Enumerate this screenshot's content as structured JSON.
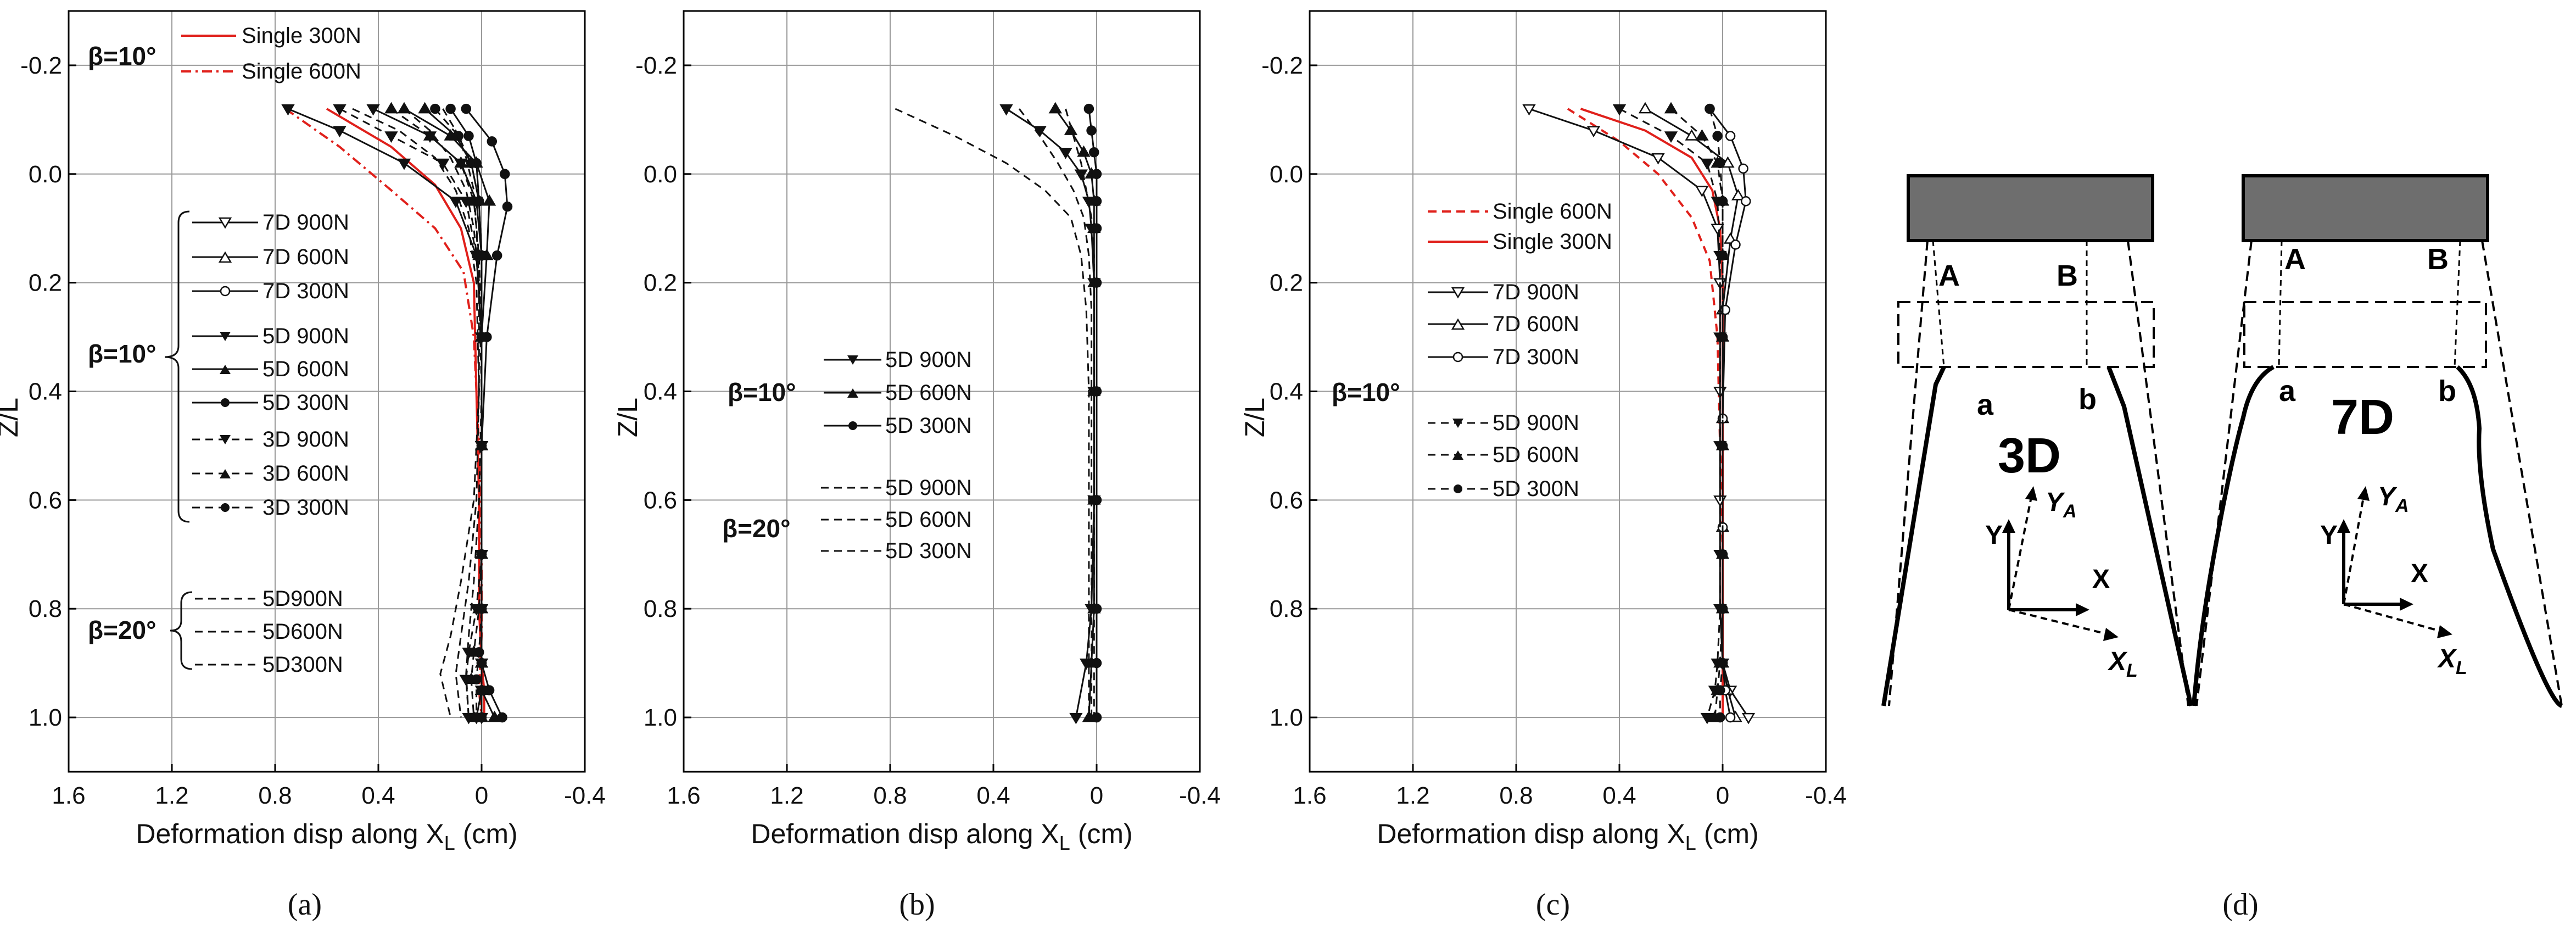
{
  "chart_data": [
    {
      "type": "line",
      "panel": "(a)",
      "xlabel": "Deformation disp along X",
      "xlabel_sub": "L",
      "xlabel_unit": " (cm)",
      "ylabel": "Z/L",
      "xlim": [
        1.6,
        -0.4
      ],
      "ylim": [
        -0.3,
        1.1
      ],
      "x_ticks": [
        "1.6",
        "1.2",
        "0.8",
        "0.4",
        "0",
        "-0.4"
      ],
      "y_ticks": [
        "-0.2",
        "0.0",
        "0.2",
        "0.4",
        "0.6",
        "0.8",
        "1.0"
      ],
      "annotations": [
        "β=10°",
        "β=10°",
        "β=20°"
      ],
      "series": [
        {
          "name": "Single 300N",
          "style": "red-solid",
          "x": [
            0.6,
            0.35,
            0.18,
            0.08,
            0.03,
            0.02,
            0.01,
            0.01,
            0.0,
            -0.01,
            -0.01
          ],
          "y": [
            -0.12,
            -0.05,
            0.02,
            0.1,
            0.2,
            0.4,
            0.6,
            0.8,
            0.9,
            0.95,
            1.0
          ]
        },
        {
          "name": "Single 600N",
          "style": "red-dashdot",
          "x": [
            0.76,
            0.55,
            0.35,
            0.18,
            0.07,
            0.03,
            0.01,
            0.0,
            0.0,
            0.01,
            0.0
          ],
          "y": [
            -0.12,
            -0.05,
            0.03,
            0.1,
            0.18,
            0.3,
            0.5,
            0.7,
            0.85,
            0.95,
            1.0
          ]
        },
        {
          "name": "7D 900N",
          "style": "black-solid-down",
          "x": [
            0.75,
            0.55,
            0.3,
            0.1,
            0.02,
            0.0,
            0.0,
            0.0,
            0.0,
            0.0,
            0.0,
            0.02
          ],
          "y": [
            -0.12,
            -0.08,
            -0.02,
            0.05,
            0.15,
            0.3,
            0.5,
            0.7,
            0.8,
            0.9,
            0.95,
            1.0
          ]
        },
        {
          "name": "7D 600N",
          "style": "black-solid-up",
          "x": [
            0.3,
            0.12,
            0.02,
            -0.03,
            -0.02,
            0.0,
            0.0,
            0.0,
            0.0,
            0.0,
            0.0,
            -0.05
          ],
          "y": [
            -0.12,
            -0.07,
            -0.02,
            0.05,
            0.15,
            0.3,
            0.5,
            0.7,
            0.8,
            0.9,
            0.95,
            1.0
          ]
        },
        {
          "name": "7D 300N",
          "style": "black-solid-circle",
          "x": [
            0.06,
            -0.04,
            -0.09,
            -0.1,
            -0.06,
            -0.02,
            0.0,
            0.0,
            0.0,
            0.0,
            -0.03,
            -0.08
          ],
          "y": [
            -0.12,
            -0.06,
            0.0,
            0.06,
            0.15,
            0.3,
            0.5,
            0.7,
            0.8,
            0.9,
            0.95,
            1.0
          ]
        },
        {
          "name": "5D 900N",
          "style": "black-solid-down",
          "x": [
            0.42,
            0.2,
            0.08,
            0.02,
            0.0,
            0.0,
            0.0,
            0.0,
            0.0,
            0.0,
            0.0,
            0.0
          ],
          "y": [
            -0.12,
            -0.07,
            -0.02,
            0.05,
            0.15,
            0.3,
            0.5,
            0.7,
            0.8,
            0.9,
            0.95,
            1.0
          ]
        },
        {
          "name": "5D 600N",
          "style": "black-solid-up",
          "x": [
            0.22,
            0.1,
            0.04,
            0.01,
            0.0,
            0.0,
            0.0,
            0.0,
            0.0,
            0.0,
            0.0,
            0.0
          ],
          "y": [
            -0.12,
            -0.07,
            -0.02,
            0.05,
            0.15,
            0.3,
            0.5,
            0.7,
            0.8,
            0.9,
            0.95,
            1.0
          ]
        },
        {
          "name": "5D 300N",
          "style": "black-solid-circle",
          "x": [
            0.12,
            0.05,
            0.02,
            0.01,
            0.0,
            0.0,
            0.0,
            0.0,
            0.0,
            0.0,
            0.0,
            0.0
          ],
          "y": [
            -0.12,
            -0.07,
            -0.02,
            0.05,
            0.15,
            0.3,
            0.5,
            0.7,
            0.8,
            0.9,
            0.95,
            1.0
          ]
        },
        {
          "name": "3D 900N",
          "style": "black-dashed-down",
          "x": [
            0.55,
            0.35,
            0.15,
            0.06,
            0.02,
            0.0,
            0.0,
            0.0,
            0.02,
            0.05,
            0.06,
            0.05
          ],
          "y": [
            -0.12,
            -0.07,
            -0.02,
            0.05,
            0.15,
            0.3,
            0.5,
            0.7,
            0.8,
            0.88,
            0.93,
            1.0
          ]
        },
        {
          "name": "3D 600N",
          "style": "black-dashed-up",
          "x": [
            0.35,
            0.2,
            0.08,
            0.03,
            0.01,
            0.0,
            0.0,
            0.0,
            0.01,
            0.03,
            0.04,
            0.03
          ],
          "y": [
            -0.12,
            -0.07,
            -0.02,
            0.05,
            0.15,
            0.3,
            0.5,
            0.7,
            0.8,
            0.88,
            0.93,
            1.0
          ]
        },
        {
          "name": "3D 300N",
          "style": "black-dashed-circle",
          "x": [
            0.18,
            0.09,
            0.04,
            0.01,
            0.0,
            0.0,
            0.0,
            0.0,
            0.0,
            0.01,
            0.02,
            0.02
          ],
          "y": [
            -0.12,
            -0.07,
            -0.02,
            0.05,
            0.15,
            0.3,
            0.5,
            0.7,
            0.8,
            0.88,
            0.93,
            1.0
          ]
        },
        {
          "name": "5D900N",
          "style": "black-dashed",
          "x": [
            0.5,
            0.32,
            0.18,
            0.1,
            0.05,
            0.02,
            0.01,
            0.03,
            0.08,
            0.12,
            0.16,
            0.12
          ],
          "y": [
            -0.12,
            -0.08,
            -0.03,
            0.03,
            0.1,
            0.2,
            0.4,
            0.6,
            0.75,
            0.85,
            0.92,
            1.0
          ]
        },
        {
          "name": "5D600N",
          "style": "black-dashed",
          "x": [
            0.3,
            0.2,
            0.12,
            0.06,
            0.03,
            0.01,
            0.01,
            0.02,
            0.05,
            0.08,
            0.1,
            0.08
          ],
          "y": [
            -0.12,
            -0.08,
            -0.03,
            0.03,
            0.1,
            0.2,
            0.4,
            0.6,
            0.75,
            0.85,
            0.92,
            1.0
          ]
        },
        {
          "name": "5D300N",
          "style": "black-dashed",
          "x": [
            0.15,
            0.1,
            0.06,
            0.03,
            0.02,
            0.01,
            0.0,
            0.01,
            0.03,
            0.05,
            0.06,
            0.05
          ],
          "y": [
            -0.12,
            -0.08,
            -0.03,
            0.03,
            0.1,
            0.2,
            0.4,
            0.6,
            0.75,
            0.85,
            0.92,
            1.0
          ]
        }
      ]
    },
    {
      "type": "line",
      "panel": "(b)",
      "xlabel": "Deformation disp along X",
      "xlabel_sub": "L",
      "xlabel_unit": " (cm)",
      "ylabel": "Z/L",
      "xlim": [
        1.6,
        -0.4
      ],
      "ylim": [
        -0.3,
        1.1
      ],
      "x_ticks": [
        "1.6",
        "1.2",
        "0.8",
        "0.4",
        "0",
        "-0.4"
      ],
      "y_ticks": [
        "-0.2",
        "0.0",
        "0.2",
        "0.4",
        "0.6",
        "0.8",
        "1.0"
      ],
      "annotations": [
        "β=10°",
        "β=20°"
      ],
      "series": [
        {
          "name": "5D 900N",
          "style": "black-solid-down",
          "x": [
            0.35,
            0.22,
            0.12,
            0.06,
            0.03,
            0.02,
            0.01,
            0.01,
            0.01,
            0.02,
            0.04,
            0.08
          ],
          "y": [
            -0.12,
            -0.08,
            -0.04,
            0.0,
            0.05,
            0.1,
            0.2,
            0.4,
            0.6,
            0.8,
            0.9,
            1.0
          ]
        },
        {
          "name": "5D 600N",
          "style": "black-solid-up",
          "x": [
            0.16,
            0.1,
            0.05,
            0.02,
            0.01,
            0.01,
            0.01,
            0.01,
            0.01,
            0.01,
            0.02,
            0.03
          ],
          "y": [
            -0.12,
            -0.08,
            -0.04,
            0.0,
            0.05,
            0.1,
            0.2,
            0.4,
            0.6,
            0.8,
            0.9,
            1.0
          ]
        },
        {
          "name": "5D 300N",
          "style": "black-solid-circle",
          "x": [
            0.03,
            0.02,
            0.01,
            0.0,
            0.0,
            0.0,
            0.0,
            0.0,
            0.0,
            0.0,
            0.0,
            0.0
          ],
          "y": [
            -0.12,
            -0.08,
            -0.04,
            0.0,
            0.05,
            0.1,
            0.2,
            0.4,
            0.6,
            0.8,
            0.9,
            1.0
          ]
        },
        {
          "name": "5D 900N",
          "style": "black-dashed",
          "x": [
            0.78,
            0.55,
            0.35,
            0.2,
            0.1,
            0.06,
            0.04,
            0.03,
            0.03,
            0.03,
            0.03,
            0.03
          ],
          "y": [
            -0.12,
            -0.07,
            -0.02,
            0.03,
            0.08,
            0.15,
            0.25,
            0.4,
            0.6,
            0.8,
            0.9,
            1.0
          ]
        },
        {
          "name": "5D 600N",
          "style": "black-dashed",
          "x": [
            0.3,
            0.22,
            0.15,
            0.09,
            0.05,
            0.03,
            0.02,
            0.02,
            0.02,
            0.02,
            0.02,
            0.02
          ],
          "y": [
            -0.12,
            -0.07,
            -0.02,
            0.03,
            0.08,
            0.15,
            0.25,
            0.4,
            0.6,
            0.8,
            0.9,
            1.0
          ]
        },
        {
          "name": "5D 300N",
          "style": "black-dashed",
          "x": [
            0.12,
            0.09,
            0.06,
            0.04,
            0.02,
            0.01,
            0.01,
            0.01,
            0.01,
            0.01,
            0.01,
            0.01
          ],
          "y": [
            -0.12,
            -0.07,
            -0.02,
            0.03,
            0.08,
            0.15,
            0.25,
            0.4,
            0.6,
            0.8,
            0.9,
            1.0
          ]
        }
      ]
    },
    {
      "type": "line",
      "panel": "(c)",
      "xlabel": "Deformation disp along X",
      "xlabel_sub": "L",
      "xlabel_unit": " (cm)",
      "ylabel": "Z/L",
      "xlim": [
        1.6,
        -0.4
      ],
      "ylim": [
        -0.3,
        1.1
      ],
      "x_ticks": [
        "1.6",
        "1.2",
        "0.8",
        "0.4",
        "0",
        "-0.4"
      ],
      "y_ticks": [
        "-0.2",
        "0.0",
        "0.2",
        "0.4",
        "0.6",
        "0.8",
        "1.0"
      ],
      "annotations": [
        "β=10°"
      ],
      "series": [
        {
          "name": "Single 600N",
          "style": "red-dashed",
          "x": [
            0.6,
            0.4,
            0.25,
            0.12,
            0.05,
            0.02,
            0.01,
            0.0,
            0.0,
            0.0,
            0.0
          ],
          "y": [
            -0.12,
            -0.06,
            0.0,
            0.08,
            0.16,
            0.3,
            0.5,
            0.7,
            0.85,
            0.95,
            1.0
          ]
        },
        {
          "name": "Single 300N",
          "style": "red-solid",
          "x": [
            0.55,
            0.3,
            0.12,
            0.04,
            0.01,
            0.0,
            0.0,
            0.0,
            0.0,
            0.0,
            0.0
          ],
          "y": [
            -0.12,
            -0.08,
            -0.03,
            0.03,
            0.1,
            0.2,
            0.4,
            0.6,
            0.8,
            0.95,
            1.0
          ]
        },
        {
          "name": "7D 900N",
          "style": "black-solid-downopen",
          "x": [
            0.75,
            0.5,
            0.25,
            0.08,
            0.02,
            0.01,
            0.01,
            0.01,
            0.01,
            0.0,
            -0.03,
            -0.1
          ],
          "y": [
            -0.12,
            -0.08,
            -0.03,
            0.03,
            0.1,
            0.2,
            0.4,
            0.6,
            0.8,
            0.9,
            0.95,
            1.0
          ]
        },
        {
          "name": "7D 600N",
          "style": "black-solid-upopen",
          "x": [
            0.3,
            0.12,
            -0.02,
            -0.06,
            -0.03,
            0.0,
            0.0,
            0.0,
            0.0,
            0.0,
            -0.02,
            -0.05
          ],
          "y": [
            -0.12,
            -0.07,
            -0.02,
            0.04,
            0.12,
            0.25,
            0.45,
            0.65,
            0.8,
            0.9,
            0.95,
            1.0
          ]
        },
        {
          "name": "7D 300N",
          "style": "black-solid-circleopen",
          "x": [
            0.05,
            -0.03,
            -0.08,
            -0.09,
            -0.05,
            -0.01,
            0.0,
            0.0,
            0.0,
            0.0,
            -0.01,
            -0.03
          ],
          "y": [
            -0.12,
            -0.07,
            -0.01,
            0.05,
            0.13,
            0.25,
            0.45,
            0.65,
            0.8,
            0.9,
            0.95,
            1.0
          ]
        },
        {
          "name": "5D 900N",
          "style": "black-dashed-down",
          "x": [
            0.4,
            0.2,
            0.06,
            0.02,
            0.01,
            0.01,
            0.01,
            0.01,
            0.01,
            0.02,
            0.03,
            0.06
          ],
          "y": [
            -0.12,
            -0.07,
            -0.02,
            0.05,
            0.15,
            0.3,
            0.5,
            0.7,
            0.8,
            0.9,
            0.95,
            1.0
          ]
        },
        {
          "name": "5D 600N",
          "style": "black-dashed-up",
          "x": [
            0.2,
            0.08,
            0.02,
            0.0,
            0.0,
            0.0,
            0.0,
            0.0,
            0.0,
            0.01,
            0.02,
            0.03
          ],
          "y": [
            -0.12,
            -0.07,
            -0.02,
            0.05,
            0.15,
            0.3,
            0.5,
            0.7,
            0.8,
            0.9,
            0.95,
            1.0
          ]
        },
        {
          "name": "5D 300N",
          "style": "black-dashed-circle",
          "x": [
            0.05,
            0.02,
            0.01,
            0.0,
            0.0,
            0.0,
            0.0,
            0.0,
            0.0,
            0.0,
            0.01,
            0.01
          ],
          "y": [
            -0.12,
            -0.07,
            -0.02,
            0.05,
            0.15,
            0.3,
            0.5,
            0.7,
            0.8,
            0.9,
            0.95,
            1.0
          ]
        }
      ]
    }
  ],
  "panels": [
    {
      "caption": "(a)",
      "legend": [
        "Single 300N",
        "Single 600N",
        "7D 900N",
        "7D 600N",
        "7D 300N",
        "5D 900N",
        "5D 600N",
        "5D 300N",
        "3D 900N",
        "3D 600N",
        "3D 300N",
        "5D900N",
        "5D600N",
        "5D300N"
      ],
      "beta_top": "β=10°",
      "beta_mid": "β=10°",
      "beta_low": "β=20°"
    },
    {
      "caption": "(b)",
      "legend": [
        "5D 900N",
        "5D 600N",
        "5D 300N",
        "5D 900N",
        "5D 600N",
        "5D 300N"
      ],
      "beta_top": "β=10°",
      "beta_low": "β=20°"
    },
    {
      "caption": "(c)",
      "legend": [
        "Single 600N",
        "Single 300N",
        "7D 900N",
        "7D 600N",
        "7D 300N",
        "5D 900N",
        "5D 600N",
        "5D 300N"
      ],
      "beta_top": "β=10°"
    },
    {
      "caption": "(d)",
      "left_label": "3D",
      "right_label": "7D",
      "point_A": "A",
      "point_B": "B",
      "point_a": "a",
      "point_b": "b",
      "axis_Y": "Y",
      "axis_X": "X",
      "axis_YA": "Y",
      "axis_YA_sub": "A",
      "axis_XL": "X",
      "axis_XL_sub": "L"
    }
  ],
  "colors": {
    "red": "#e0201b",
    "black": "#111111",
    "grid": "#9a9a9a",
    "block": "#6e6e6e"
  }
}
